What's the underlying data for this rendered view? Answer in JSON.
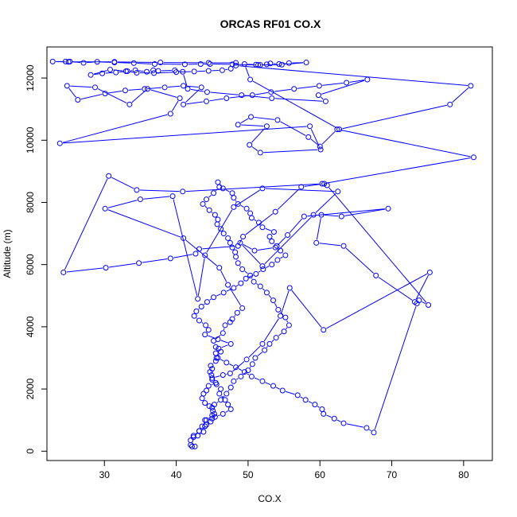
{
  "chart_data": {
    "type": "line",
    "title": "ORCAS RF01 CO.X",
    "xlabel": "CO.X",
    "ylabel": "Altitude (m)",
    "xlim": [
      22,
      84
    ],
    "ylim": [
      -300,
      13000
    ],
    "x_ticks": [
      30,
      40,
      50,
      60,
      70,
      80
    ],
    "y_ticks": [
      0,
      2000,
      4000,
      6000,
      8000,
      10000,
      12000
    ],
    "grid": false,
    "legend": "none",
    "colors": {
      "series": "#0000ff",
      "axis": "#000000"
    },
    "markers": "open-circle",
    "series": [
      {
        "x": [
          42.2,
          42.0,
          42.6,
          42.0,
          43.0,
          43.8,
          44.2,
          44.0,
          45.0,
          45.3,
          45.0,
          44.6,
          44.0,
          43.6,
          43.8,
          44.2,
          44.5,
          45.5,
          45.0,
          46.5,
          47.5,
          49.8,
          52.0,
          54.5,
          55.8,
          60.5,
          75.3,
          73.2,
          67.8,
          63.3,
          59.5,
          60.2,
          63.0,
          69.5,
          57.8,
          55.5,
          53.8,
          50.9,
          48.9,
          52.0,
          59.1,
          62.5,
          52.0,
          48.0,
          44.0,
          43.0,
          39.5,
          35.0,
          30.1,
          41.0,
          46.0,
          47.2,
          49.2,
          48.5,
          47.8,
          47.5,
          46.8,
          46.5,
          45.2,
          45.5,
          46.2,
          45.6,
          45.5,
          44.8,
          45.0,
          44.7,
          44.9,
          45.0,
          45.6,
          46.2,
          46.0,
          46.8,
          47.2,
          47.6,
          46.5,
          45.4,
          44.8,
          44.0,
          43.2,
          42.4,
          42.4,
          43.2,
          43.6,
          44.2,
          45.0,
          45.1,
          45.3,
          46.2,
          47.0,
          47.6,
          48.0,
          49.0,
          50.0,
          50.6,
          51.0,
          52.3,
          53.0,
          53.9,
          55.0,
          55.7,
          55.2,
          54.2,
          53.5,
          52.6,
          51.7,
          50.8,
          50.3,
          49.2,
          48.6,
          48.3,
          48.2,
          47.8,
          47.5,
          47.2,
          46.6,
          46.2,
          45.7,
          45.8,
          45.4,
          44.6,
          43.7,
          44.2,
          45.2,
          46.0,
          45.8,
          46.5,
          47.8,
          48.0,
          48.6,
          49.8,
          50.3,
          50.5,
          51.5,
          52.0,
          53.6,
          53.0,
          53.3,
          54.0,
          54.5,
          55.2,
          54.1,
          53.3,
          52.1,
          51.1,
          49.7,
          49.0,
          48.0,
          46.6,
          45.2,
          44.3,
          43.5,
          42.8,
          42.5,
          43.2,
          44.1,
          44.5,
          44.0,
          45.8,
          47.6,
          45.9,
          45.5,
          45.8,
          47.0,
          48.3,
          49.5,
          50.5,
          52.0,
          53.5,
          54.8,
          56.9,
          58.0,
          59.3,
          60.3,
          60.5,
          62.0,
          63.3,
          66.5,
          67.5,
          73.5,
          73.8,
          75.1,
          61.0,
          60.6,
          57.4,
          53.8,
          49.3,
          48.6,
          43.2,
          42.7,
          39.2,
          34.8,
          30.2,
          24.3,
          30.6,
          34.5,
          40.9,
          60.3,
          81.4,
          62.4,
          60.0,
          58.4,
          54.1,
          50.4,
          48.6,
          52.6,
          50.2,
          51.7,
          60.1,
          58.6,
          23.8,
          39.2,
          40.5,
          36.0,
          33.5,
          28.7,
          24.8,
          26.3,
          30.1,
          32.9,
          35.6,
          38.4,
          41.0,
          43.5,
          41.0,
          44.2,
          47.0,
          50.6,
          53.2,
          56.4,
          59.9,
          63.7,
          66.6,
          59.8,
          60.8,
          53.3,
          49.1,
          44.3,
          41.6,
          40.9,
          39.8,
          37.5,
          36.8,
          35.9,
          34.3,
          33.2,
          31.6,
          29.7,
          28.1,
          30.8,
          33.0,
          34.5,
          36.9,
          40.0,
          42.5,
          44.5,
          46.4,
          47.6,
          48.3,
          81.0,
          78.1,
          62.7,
          50.3,
          49.5,
          51.1,
          51.7,
          52.6,
          53.1,
          54.3,
          55.7,
          58.1,
          54.7,
          51.4,
          47.8,
          44.7,
          43.4,
          41.2,
          37.0,
          34.1,
          31.4,
          29.0,
          27.1,
          25.2,
          24.6,
          22.8,
          25.0,
          31.4,
          37.8,
          44.5,
          48.3
        ],
        "y": [
          150,
          200,
          150,
          350,
          500,
          620,
          850,
          1000,
          1050,
          1200,
          1400,
          1450,
          1550,
          1700,
          1850,
          1950,
          2100,
          2200,
          2350,
          2450,
          2500,
          2950,
          3450,
          4350,
          5250,
          3900,
          5750,
          4800,
          5650,
          6600,
          6700,
          7600,
          7550,
          7800,
          7550,
          6950,
          6550,
          6450,
          6700,
          5950,
          7600,
          8350,
          8450,
          7850,
          6300,
          4900,
          8200,
          8100,
          7800,
          6850,
          5900,
          5350,
          4600,
          4450,
          4250,
          4150,
          4050,
          3800,
          3550,
          3350,
          3200,
          3000,
          2900,
          2750,
          2650,
          2550,
          2450,
          2300,
          2150,
          2000,
          1850,
          1650,
          1500,
          1350,
          1200,
          1100,
          950,
          800,
          650,
          500,
          450,
          650,
          800,
          1000,
          1150,
          1300,
          1500,
          1650,
          1850,
          2050,
          2250,
          2400,
          2600,
          2800,
          3000,
          3250,
          3450,
          3650,
          3850,
          4050,
          4300,
          4550,
          4850,
          5100,
          5300,
          5450,
          5650,
          5850,
          6050,
          6250,
          6400,
          6550,
          6700,
          6850,
          7000,
          7150,
          7300,
          7450,
          7600,
          7750,
          7950,
          8100,
          8300,
          8500,
          8650,
          8450,
          8300,
          8150,
          7950,
          7800,
          7650,
          7500,
          7350,
          7200,
          7050,
          6900,
          6750,
          6600,
          6450,
          6300,
          6150,
          6000,
          5850,
          5700,
          5550,
          5400,
          5250,
          5100,
          4950,
          4800,
          4650,
          4500,
          4350,
          4200,
          4050,
          3900,
          3750,
          3600,
          3450,
          3300,
          3150,
          3000,
          2850,
          2700,
          2550,
          2400,
          2250,
          2100,
          1950,
          1800,
          1650,
          1500,
          1350,
          1200,
          1050,
          900,
          750,
          600,
          4750,
          4850,
          4700,
          8550,
          8600,
          8500,
          7700,
          6900,
          6600,
          6500,
          6350,
          6200,
          6050,
          5900,
          5750,
          8850,
          8400,
          8350,
          8600,
          9450,
          10350,
          9800,
          10100,
          10650,
          10750,
          10500,
          10450,
          9850,
          9600,
          9700,
          10450,
          9900,
          10850,
          11350,
          11650,
          11150,
          11700,
          11750,
          11300,
          11500,
          11600,
          11650,
          11700,
          11750,
          11700,
          11150,
          11250,
          11350,
          11450,
          11550,
          11650,
          11750,
          11850,
          11950,
          11450,
          11250,
          11350,
          11450,
          11550,
          11650,
          12200,
          12250,
          12230,
          12250,
          12200,
          12250,
          12220,
          12180,
          12150,
          12100,
          12270,
          12220,
          12170,
          12160,
          12190,
          12210,
          12230,
          12250,
          12300,
          12400,
          11750,
          11150,
          10350,
          11950,
          12450,
          12430,
          12420,
          12440,
          12470,
          12450,
          12480,
          12500,
          12430,
          12420,
          12440,
          12450,
          12450,
          12440,
          12450,
          12480,
          12500,
          12520,
          12490,
          12530,
          12530,
          12530,
          12520,
          12520,
          12500,
          12490,
          12490
        ]
      }
    ]
  }
}
